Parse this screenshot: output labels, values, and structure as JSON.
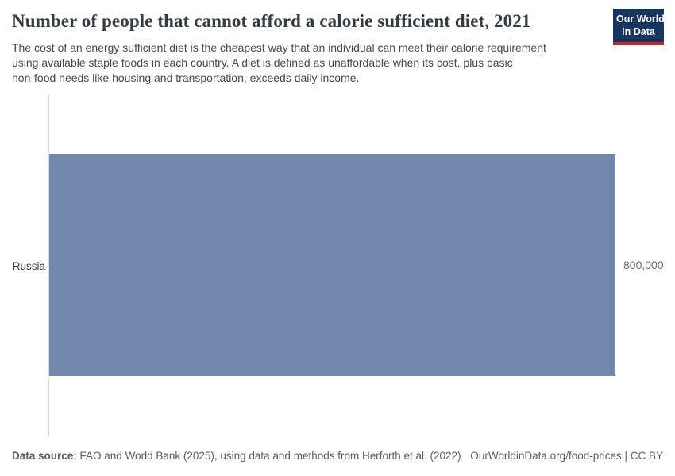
{
  "chart_data": {
    "type": "bar",
    "orientation": "horizontal",
    "title": "Number of people that cannot afford a calorie sufficient diet, 2021",
    "subtitle_lines": [
      "The cost of an energy sufficient diet is the cheapest way that an individual can meet their calorie requirement",
      "using available staple foods in each country. A diet is defined as unaffordable when its cost, plus basic",
      "non-food needs like housing and transportation, exceeds daily income."
    ],
    "categories": [
      "Russia"
    ],
    "values": [
      800000
    ],
    "value_labels": [
      "800,000"
    ],
    "xlim": [
      0,
      800000
    ],
    "xlabel": "",
    "ylabel": "",
    "grid": false,
    "legend": "none",
    "bar_color": "#7288ad",
    "axis_line_color": "#dcdcdc"
  },
  "header": {
    "logo": {
      "line1": "Our World",
      "line2": "in Data",
      "bg_color": "#17355f",
      "stripe_color": "#c0282d"
    }
  },
  "footer": {
    "datasource_label": "Data source:",
    "datasource_text": " FAO and World Bank (2025), using data and methods from Herforth et al. (2022)",
    "attribution": "OurWorldinData.org/food-prices | CC BY"
  }
}
